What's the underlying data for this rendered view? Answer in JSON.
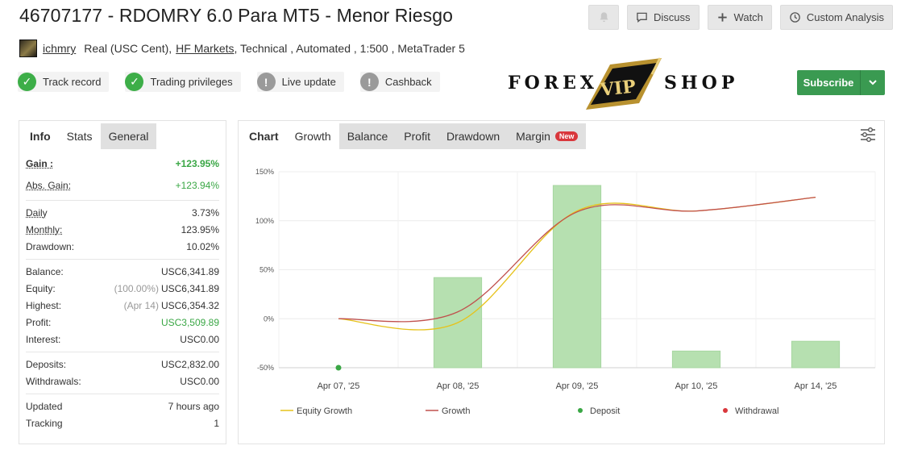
{
  "header": {
    "title": "46707177 - RDOMRY 6.0 Para MT5 - Menor Riesgo",
    "actions": {
      "discuss": "Discuss",
      "watch": "Watch",
      "custom_analysis": "Custom Analysis"
    }
  },
  "account": {
    "user": "ichmry",
    "type": "Real (USC Cent),",
    "broker": "HF Markets",
    "rest": ", Technical , Automated , 1:500 , MetaTrader 5"
  },
  "badges": [
    {
      "label": "Track record",
      "state": "ok"
    },
    {
      "label": "Trading privileges",
      "state": "ok"
    },
    {
      "label": "Live update",
      "state": "warn"
    },
    {
      "label": "Cashback",
      "state": "warn"
    }
  ],
  "logo": {
    "left": "FOREX",
    "mid": "VIP",
    "right": "SHOP"
  },
  "subscribe": {
    "label": "Subscribe"
  },
  "left_tabs": [
    "Info",
    "Stats",
    "General"
  ],
  "stats": {
    "gain": {
      "label": "Gain :",
      "value": "+123.95%"
    },
    "abs_gain": {
      "label": "Abs. Gain:",
      "value": "+123.94%"
    },
    "daily": {
      "label": "Daily",
      "value": "3.73%"
    },
    "monthly": {
      "label": "Monthly:",
      "value": "123.95%"
    },
    "drawdown": {
      "label": "Drawdown:",
      "value": "10.02%"
    },
    "balance": {
      "label": "Balance:",
      "value": "USC6,341.89"
    },
    "equity": {
      "label": "Equity:",
      "note": "(100.00%)",
      "value": "USC6,341.89"
    },
    "highest": {
      "label": "Highest:",
      "note": "(Apr 14)",
      "value": "USC6,354.32"
    },
    "profit": {
      "label": "Profit:",
      "value": "USC3,509.89"
    },
    "interest": {
      "label": "Interest:",
      "value": "USC0.00"
    },
    "deposits": {
      "label": "Deposits:",
      "value": "USC2,832.00"
    },
    "withdrawals": {
      "label": "Withdrawals:",
      "value": "USC0.00"
    },
    "updated": {
      "label": "Updated",
      "value": "7 hours ago"
    },
    "tracking": {
      "label": "Tracking",
      "value": "1"
    }
  },
  "chart_tabs": {
    "chart": "Chart",
    "growth": "Growth",
    "balance": "Balance",
    "profit": "Profit",
    "drawdown": "Drawdown",
    "margin": "Margin",
    "new_badge": "New"
  },
  "colors": {
    "bar": "#b6e0b0",
    "growth": "#c0504d",
    "equity": "#e6c21a",
    "deposit": "#3aa745",
    "withdrawal": "#d9373c",
    "accent": "#3a9a51"
  },
  "chart_data": {
    "type": "bar",
    "categories": [
      "Apr 07, '25",
      "Apr 08, '25",
      "Apr 09, '25",
      "Apr 10, '25",
      "Apr 14, '25"
    ],
    "ylim": [
      -50,
      150
    ],
    "yticks": [
      150,
      100,
      50,
      0,
      -50
    ],
    "ytick_labels": [
      "150%",
      "100%",
      "50%",
      "0%",
      "-50%"
    ],
    "bar_values": [
      null,
      42,
      136,
      -33,
      -23
    ],
    "series": [
      {
        "name": "Growth",
        "values": [
          0,
          7,
          109,
          110,
          124
        ]
      },
      {
        "name": "Equity Growth",
        "values": [
          0,
          -4,
          110,
          110,
          124
        ]
      }
    ],
    "deposit_markers": [
      {
        "category": "Apr 07, '25",
        "value": -50
      }
    ],
    "legend": [
      "Equity Growth",
      "Growth",
      "Deposit",
      "Withdrawal"
    ],
    "legend_position": "bottom",
    "grid": true
  }
}
